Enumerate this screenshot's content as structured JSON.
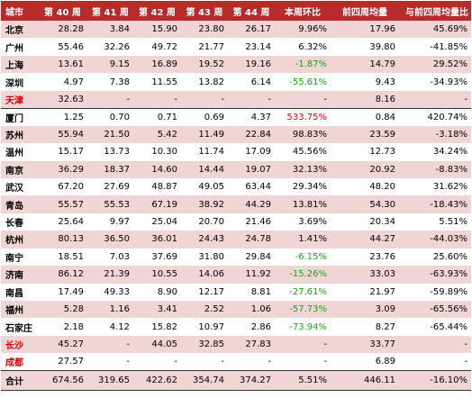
{
  "headers": [
    "城市",
    "第 40 周",
    "第 41 周",
    "第 42 周",
    "第 43 周",
    "第 44 周",
    "本周环比",
    "前四周均量",
    "与前四周均量比"
  ],
  "rows": [
    {
      "city": "北京",
      "city_red": false,
      "cells": [
        "28.28",
        "3.84",
        "15.90",
        "23.80",
        "26.17",
        "9.96%",
        "17.96",
        "45.69%"
      ],
      "change_color": "black"
    },
    {
      "city": "广州",
      "city_red": false,
      "cells": [
        "55.46",
        "32.26",
        "49.72",
        "21.77",
        "23.14",
        "6.32%",
        "39.80",
        "-41.85%"
      ],
      "change_color": "black"
    },
    {
      "city": "上海",
      "city_red": false,
      "cells": [
        "13.61",
        "9.15",
        "16.89",
        "19.52",
        "19.16",
        "-1.87%",
        "14.79",
        "29.52%"
      ],
      "change_color": "green"
    },
    {
      "city": "深圳",
      "city_red": false,
      "cells": [
        "4.97",
        "7.38",
        "11.55",
        "13.82",
        "6.14",
        "-55.61%",
        "9.43",
        "-34.93%"
      ],
      "change_color": "green"
    },
    {
      "city": "天津",
      "city_red": true,
      "cells": [
        "32.63",
        "-",
        "-",
        "-",
        "-",
        "-",
        "8.16",
        "-"
      ],
      "change_color": "black"
    },
    {
      "city": "厦门",
      "city_red": false,
      "cells": [
        "1.25",
        "0.70",
        "0.71",
        "0.69",
        "4.37",
        "533.75%",
        "0.84",
        "420.74%"
      ],
      "change_color": "red"
    },
    {
      "city": "苏州",
      "city_red": false,
      "cells": [
        "55.94",
        "21.50",
        "5.42",
        "11.49",
        "22.84",
        "98.83%",
        "23.59",
        "-3.18%"
      ],
      "change_color": "black"
    },
    {
      "city": "温州",
      "city_red": false,
      "cells": [
        "15.17",
        "13.73",
        "10.30",
        "11.74",
        "17.09",
        "45.56%",
        "12.73",
        "34.24%"
      ],
      "change_color": "black"
    },
    {
      "city": "南京",
      "city_red": false,
      "cells": [
        "36.29",
        "18.37",
        "14.60",
        "14.44",
        "19.07",
        "32.13%",
        "20.92",
        "-8.83%"
      ],
      "change_color": "black"
    },
    {
      "city": "武汉",
      "city_red": false,
      "cells": [
        "67.20",
        "27.69",
        "48.87",
        "49.05",
        "63.44",
        "29.34%",
        "48.20",
        "31.62%"
      ],
      "change_color": "black"
    },
    {
      "city": "青岛",
      "city_red": false,
      "cells": [
        "55.57",
        "55.53",
        "67.19",
        "38.92",
        "44.29",
        "13.81%",
        "54.30",
        "-18.43%"
      ],
      "change_color": "black"
    },
    {
      "city": "长春",
      "city_red": false,
      "cells": [
        "25.64",
        "9.97",
        "25.04",
        "20.70",
        "21.46",
        "3.69%",
        "20.34",
        "5.51%"
      ],
      "change_color": "black"
    },
    {
      "city": "杭州",
      "city_red": false,
      "cells": [
        "80.13",
        "36.50",
        "36.01",
        "24.43",
        "24.78",
        "1.41%",
        "44.27",
        "-44.03%"
      ],
      "change_color": "black"
    },
    {
      "city": "南宁",
      "city_red": false,
      "cells": [
        "18.51",
        "7.03",
        "37.69",
        "31.80",
        "29.84",
        "-6.15%",
        "23.76",
        "25.60%"
      ],
      "change_color": "green"
    },
    {
      "city": "济南",
      "city_red": false,
      "cells": [
        "86.12",
        "21.39",
        "10.55",
        "14.06",
        "11.92",
        "-15.26%",
        "33.03",
        "-63.93%"
      ],
      "change_color": "green"
    },
    {
      "city": "南昌",
      "city_red": false,
      "cells": [
        "17.49",
        "49.33",
        "8.90",
        "12.17",
        "8.81",
        "-27.61%",
        "21.97",
        "-59.89%"
      ],
      "change_color": "green"
    },
    {
      "city": "福州",
      "city_red": false,
      "cells": [
        "5.28",
        "1.16",
        "3.41",
        "2.52",
        "1.06",
        "-57.73%",
        "3.09",
        "-65.56%"
      ],
      "change_color": "green"
    },
    {
      "city": "石家庄",
      "city_red": false,
      "cells": [
        "2.18",
        "4.12",
        "15.82",
        "10.97",
        "2.86",
        "-73.94%",
        "8.27",
        "-65.44%"
      ],
      "change_color": "green"
    },
    {
      "city": "长沙",
      "city_red": true,
      "cells": [
        "45.27",
        "-",
        "44.05",
        "32.85",
        "27.83",
        "-",
        "33.77",
        "-"
      ],
      "change_color": "black"
    },
    {
      "city": "成都",
      "city_red": true,
      "cells": [
        "27.57",
        "-",
        "-",
        "-",
        "-",
        "-",
        "6.89",
        "-"
      ],
      "change_color": "black"
    }
  ],
  "total": {
    "city": "合计",
    "cells": [
      "674.56",
      "319.65",
      "422.62",
      "354.74",
      "374.27",
      "5.51%",
      "446.11",
      "-16.10%"
    ]
  }
}
